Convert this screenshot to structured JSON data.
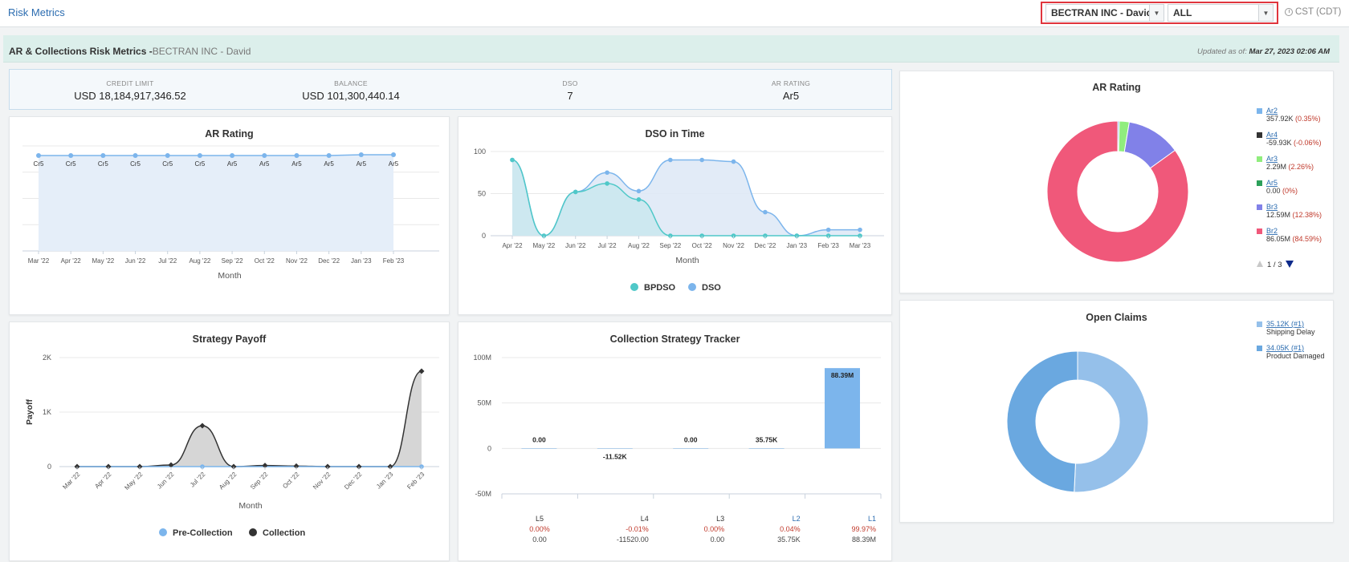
{
  "header": {
    "breadcrumb": "Risk Metrics",
    "company_value": "BECTRAN INC - David",
    "filter_value": "ALL",
    "timezone": "CST (CDT)"
  },
  "section": {
    "title": "AR & Collections Risk Metrics -",
    "subtitle": "BECTRAN INC - David",
    "updated_label": "Updated as of:",
    "updated_value": "Mar 27, 2023 02:06 AM"
  },
  "kpis": [
    {
      "label": "CREDIT LIMIT",
      "value": "USD 18,184,917,346.52"
    },
    {
      "label": "BALANCE",
      "value": "USD 101,300,440.14"
    },
    {
      "label": "DSO",
      "value": "7"
    },
    {
      "label": "AR RATING",
      "value": "Ar5"
    }
  ],
  "colors": {
    "blue": "#7cb5ec",
    "teal": "#4fc8c8",
    "dark": "#333333",
    "pink": "#f0587a",
    "purple": "#8181e8",
    "green": "#90ed7d",
    "darkgreen": "#2ca05a",
    "red_text": "#c0392b",
    "claims_light": "#95c0ea",
    "claims_dark": "#6aa8e0"
  },
  "chart_data": [
    {
      "id": "ar_rating_line",
      "type": "area",
      "title": "AR Rating",
      "xlabel": "Month",
      "categories": [
        "Mar '22",
        "Apr '22",
        "May '22",
        "Jun '22",
        "Jul '22",
        "Aug '22",
        "Sep '22",
        "Oct '22",
        "Nov '22",
        "Dec '22",
        "Jan '23",
        "Feb '23"
      ],
      "point_labels": [
        "Cr5",
        "Cr5",
        "Cr5",
        "Cr5",
        "Cr5",
        "Cr5",
        "Ar5",
        "Ar5",
        "Ar5",
        "Ar5",
        "Ar5",
        "Ar5"
      ]
    },
    {
      "id": "dso_in_time",
      "type": "area",
      "title": "DSO in Time",
      "xlabel": "Month",
      "ylim": [
        0,
        100
      ],
      "yticks": [
        0,
        50,
        100
      ],
      "categories": [
        "Apr '22",
        "May '22",
        "Jun '22",
        "Jul '22",
        "Aug '22",
        "Sep '22",
        "Oct '22",
        "Nov '22",
        "Dec '22",
        "Jan '23",
        "Feb '23",
        "Mar '23"
      ],
      "series": [
        {
          "name": "BPDSO",
          "values": [
            90,
            0,
            52,
            62,
            43,
            0,
            0,
            0,
            0,
            0,
            0,
            0
          ]
        },
        {
          "name": "DSO",
          "values": [
            90,
            0,
            52,
            75,
            53,
            90,
            90,
            88,
            28,
            0,
            7,
            7
          ]
        }
      ]
    },
    {
      "id": "strategy_payoff",
      "type": "area",
      "title": "Strategy Payoff",
      "xlabel": "Month",
      "ylabel": "Payoff",
      "ylim": [
        0,
        2000
      ],
      "yticks": [
        {
          "v": 0,
          "label": "0"
        },
        {
          "v": 1000,
          "label": "1K"
        },
        {
          "v": 2000,
          "label": "2K"
        }
      ],
      "categories": [
        "Mar '22",
        "Apr '22",
        "May '22",
        "Jun '22",
        "Jul '22",
        "Aug '22",
        "Sep '22",
        "Oct '22",
        "Nov '22",
        "Dec '22",
        "Jan '23",
        "Feb '23"
      ],
      "series": [
        {
          "name": "Pre-Collection",
          "values": [
            0,
            0,
            0,
            0,
            0,
            0,
            0,
            0,
            0,
            0,
            0,
            0
          ]
        },
        {
          "name": "Collection",
          "values": [
            0,
            0,
            0,
            30,
            750,
            0,
            20,
            10,
            0,
            0,
            0,
            1750
          ]
        }
      ]
    },
    {
      "id": "collection_strategy_tracker",
      "type": "bar",
      "title": "Collection Strategy Tracker",
      "ylim": [
        -50,
        100
      ],
      "yticks": [
        {
          "v": 100,
          "label": "100M"
        },
        {
          "v": 50,
          "label": "50M"
        },
        {
          "v": 0,
          "label": "0"
        },
        {
          "v": -50,
          "label": "-50M"
        }
      ],
      "categories": [
        "L5",
        "L4",
        "L3",
        "L2",
        "L1"
      ],
      "values_millions": [
        0,
        -0.01152,
        0,
        0.03575,
        88.39
      ],
      "data_labels": [
        "0.00",
        "-11.52K",
        "0.00",
        "35.75K",
        "88.39M"
      ],
      "percent_labels": [
        "0.00%",
        "-0.01%",
        "0.00%",
        "0.04%",
        "99.97%"
      ],
      "amount_labels": [
        "0.00",
        "-11520.00",
        "0.00",
        "35.75K",
        "88.39M"
      ]
    },
    {
      "id": "ar_rating_pie",
      "type": "pie",
      "title": "AR Rating",
      "slices": [
        {
          "name": "Ar2",
          "value": 0.35,
          "amount": "357.92K",
          "pct": "(0.35%)",
          "color": "#7cb5ec"
        },
        {
          "name": "Ar4",
          "value": -0.06,
          "amount": "-59.93K",
          "pct": "(-0.06%)",
          "color": "#333333"
        },
        {
          "name": "Ar3",
          "value": 2.26,
          "amount": "2.29M",
          "pct": "(2.26%)",
          "color": "#90ed7d"
        },
        {
          "name": "Ar5",
          "value": 0,
          "amount": "0.00",
          "pct": "(0%)",
          "color": "#2ca05a"
        },
        {
          "name": "Br3",
          "value": 12.38,
          "amount": "12.59M",
          "pct": "(12.38%)",
          "color": "#8181e8"
        },
        {
          "name": "Br2",
          "value": 84.59,
          "amount": "86.05M",
          "pct": "(84.59%)",
          "color": "#f0587a"
        }
      ],
      "legend_page": "1 / 3"
    },
    {
      "id": "open_claims",
      "type": "pie",
      "title": "Open Claims",
      "slices": [
        {
          "name": "Shipping Delay",
          "amount": "35.12K (#1)",
          "value": 35.12,
          "color": "#95c0ea"
        },
        {
          "name": "Product Damaged",
          "amount": "34.05K (#1)",
          "value": 34.05,
          "color": "#6aa8e0"
        }
      ]
    }
  ]
}
